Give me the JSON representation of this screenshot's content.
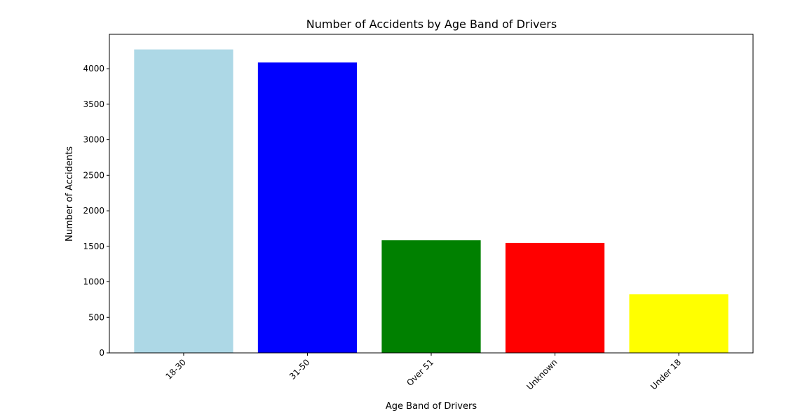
{
  "chart_data": {
    "type": "bar",
    "title": "Number of Accidents by Age Band of Drivers",
    "xlabel": "Age Band of Drivers",
    "ylabel": "Number of Accidents",
    "categories": [
      "18-30",
      "31-50",
      "Over 51",
      "Unknown",
      "Under 18"
    ],
    "values": [
      4271,
      4087,
      1585,
      1548,
      825
    ],
    "colors": [
      "#add8e6",
      "#0000ff",
      "#008000",
      "#ff0000",
      "#ffff00"
    ],
    "ylim": [
      0,
      4484
    ],
    "yticks": [
      0,
      500,
      1000,
      1500,
      2000,
      2500,
      3000,
      3500,
      4000
    ],
    "ytick_labels": [
      "0",
      "500",
      "1000",
      "1500",
      "2000",
      "2500",
      "3000",
      "3500",
      "4000"
    ],
    "xtick_rotation_deg": 45,
    "grid": false,
    "legend": "none"
  }
}
